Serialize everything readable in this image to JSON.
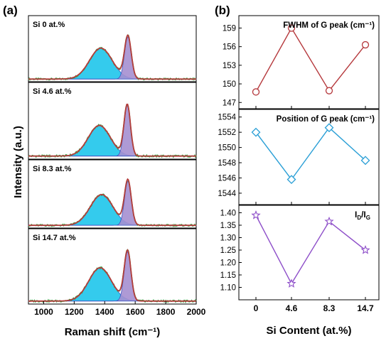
{
  "chart_data": [
    {
      "panel_label": "(a)",
      "type": "line",
      "xlabel": "Raman shift (cm⁻¹)",
      "ylabel": "Intensity (a.u.)",
      "xlim": [
        900,
        2000
      ],
      "xticks": [
        "1000",
        "1200",
        "1400",
        "1600",
        "1800",
        "2000"
      ],
      "colors": {
        "d_band_fill": "#29c8ec",
        "g_band_fill": "#a58fd0",
        "fit_line": "#3d55c4",
        "measured_curve": "#b43c3c",
        "raw_points": "#3aa648"
      },
      "spectra": [
        {
          "label": "Si  0 at.%",
          "d_peak": {
            "center": 1375,
            "width": 175,
            "height": 0.55
          },
          "g_peak": {
            "center": 1552,
            "width": 52,
            "height": 0.75
          }
        },
        {
          "label": "Si  4.6 at.%",
          "d_peak": {
            "center": 1365,
            "width": 170,
            "height": 0.47
          },
          "g_peak": {
            "center": 1548,
            "width": 50,
            "height": 0.78
          }
        },
        {
          "label": "Si  8.3 at.%",
          "d_peak": {
            "center": 1380,
            "width": 175,
            "height": 0.53
          },
          "g_peak": {
            "center": 1552,
            "width": 52,
            "height": 0.76
          }
        },
        {
          "label": "Si  14.7 at.%",
          "d_peak": {
            "center": 1370,
            "width": 175,
            "height": 0.52
          },
          "g_peak": {
            "center": 1550,
            "width": 52,
            "height": 0.77
          }
        }
      ]
    },
    {
      "panel_label": "(b)",
      "type": "line",
      "xlabel": "Si Content (at.%)",
      "categories": [
        "0",
        "4.6",
        "8.3",
        "14.7"
      ],
      "panels": [
        {
          "title": "FWHM of G peak (cm⁻¹)",
          "marker": "circle",
          "color": "#b5383c",
          "values": [
            148.7,
            159.0,
            148.9,
            156.3
          ],
          "ylim": [
            146,
            161
          ],
          "yticks": [
            "147",
            "150",
            "153",
            "156",
            "159"
          ]
        },
        {
          "title": "Position of G peak (cm⁻¹)",
          "marker": "diamond",
          "color": "#2a9fd6",
          "values": [
            1552.0,
            1545.8,
            1552.6,
            1548.3
          ],
          "ylim": [
            1542.5,
            1555
          ],
          "yticks": [
            "1544",
            "1546",
            "1548",
            "1550",
            "1552",
            "1554"
          ]
        },
        {
          "title_main": "I",
          "title_sub_1": "D",
          "title_slash": "/I",
          "title_sub_2": "G",
          "marker": "star",
          "color": "#8e4fc9",
          "values": [
            1.39,
            1.115,
            1.365,
            1.25
          ],
          "ylim": [
            1.05,
            1.43
          ],
          "yticks": [
            "1.10",
            "1.15",
            "1.20",
            "1.25",
            "1.30",
            "1.35",
            "1.40"
          ]
        }
      ]
    }
  ]
}
